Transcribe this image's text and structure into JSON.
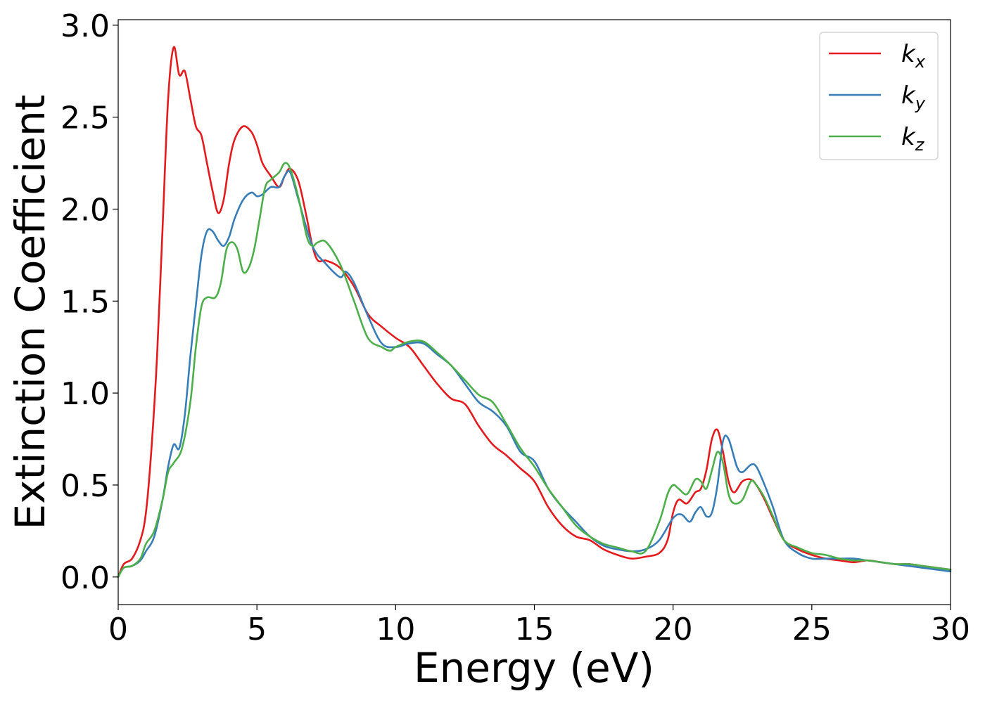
{
  "chart_data": {
    "type": "line",
    "xlabel": "Energy (eV)",
    "ylabel": "Extinction Coefficient",
    "xlim": [
      0,
      30
    ],
    "ylim": [
      -0.15,
      3.03
    ],
    "xticks": [
      "0",
      "5",
      "10",
      "15",
      "20",
      "25",
      "30"
    ],
    "yticks": [
      "0.0",
      "0.5",
      "1.0",
      "1.5",
      "2.0",
      "2.5",
      "3.0"
    ],
    "grid": false,
    "legend_position": "top-right",
    "series": [
      {
        "name": "k_x",
        "label_main": "k",
        "label_sub": "x",
        "color": "#e41a1c",
        "x": [
          0,
          0.2,
          0.5,
          0.8,
          1.0,
          1.2,
          1.4,
          1.6,
          1.8,
          2.0,
          2.2,
          2.4,
          2.6,
          2.8,
          3.0,
          3.2,
          3.4,
          3.6,
          3.8,
          4.0,
          4.2,
          4.5,
          4.8,
          5.0,
          5.2,
          5.5,
          5.8,
          6.0,
          6.2,
          6.5,
          6.8,
          7.0,
          7.2,
          7.5,
          8.0,
          8.5,
          9.0,
          9.5,
          10.0,
          10.5,
          11.0,
          11.5,
          12.0,
          12.5,
          13.0,
          13.5,
          14.0,
          14.5,
          15.0,
          15.5,
          16.0,
          16.5,
          17.0,
          17.5,
          18.0,
          18.5,
          19.0,
          19.5,
          19.8,
          20.0,
          20.2,
          20.5,
          20.8,
          21.0,
          21.2,
          21.4,
          21.6,
          21.8,
          22.0,
          22.2,
          22.5,
          22.8,
          23.0,
          23.3,
          23.6,
          24.0,
          24.5,
          25.0,
          25.5,
          26.0,
          26.5,
          27.0,
          27.5,
          28.0,
          28.5,
          29.0,
          29.5,
          30.0
        ],
        "y": [
          0.0,
          0.07,
          0.1,
          0.2,
          0.35,
          0.7,
          1.2,
          1.9,
          2.6,
          2.88,
          2.73,
          2.75,
          2.6,
          2.45,
          2.4,
          2.25,
          2.1,
          1.98,
          2.05,
          2.25,
          2.38,
          2.45,
          2.42,
          2.35,
          2.25,
          2.18,
          2.12,
          2.18,
          2.22,
          2.15,
          1.95,
          1.8,
          1.72,
          1.72,
          1.68,
          1.58,
          1.43,
          1.36,
          1.3,
          1.25,
          1.15,
          1.05,
          0.97,
          0.94,
          0.82,
          0.72,
          0.66,
          0.59,
          0.52,
          0.38,
          0.28,
          0.22,
          0.2,
          0.15,
          0.12,
          0.1,
          0.11,
          0.13,
          0.2,
          0.35,
          0.42,
          0.4,
          0.46,
          0.48,
          0.58,
          0.75,
          0.8,
          0.68,
          0.52,
          0.46,
          0.52,
          0.53,
          0.5,
          0.42,
          0.32,
          0.2,
          0.15,
          0.12,
          0.1,
          0.09,
          0.08,
          0.09,
          0.08,
          0.07,
          0.07,
          0.06,
          0.05,
          0.04
        ]
      },
      {
        "name": "k_y",
        "label_main": "k",
        "label_sub": "y",
        "color": "#377eb8",
        "x": [
          0,
          0.2,
          0.5,
          0.8,
          1.0,
          1.3,
          1.6,
          1.8,
          2.0,
          2.2,
          2.4,
          2.6,
          2.8,
          3.0,
          3.2,
          3.4,
          3.6,
          3.8,
          4.0,
          4.2,
          4.5,
          4.8,
          5.0,
          5.2,
          5.5,
          5.8,
          6.0,
          6.2,
          6.5,
          7.0,
          7.5,
          8.0,
          8.2,
          8.5,
          9.0,
          9.5,
          10.0,
          10.5,
          11.0,
          11.5,
          12.0,
          12.5,
          13.0,
          13.5,
          14.0,
          14.5,
          15.0,
          15.5,
          16.0,
          16.5,
          17.0,
          17.5,
          18.0,
          18.5,
          19.0,
          19.5,
          20.0,
          20.3,
          20.6,
          20.8,
          21.0,
          21.2,
          21.4,
          21.6,
          21.8,
          22.0,
          22.3,
          22.5,
          22.8,
          23.0,
          23.3,
          23.6,
          24.0,
          24.5,
          25.0,
          25.5,
          26.0,
          26.5,
          27.0,
          27.5,
          28.0,
          28.5,
          29.0,
          29.5,
          30.0
        ],
        "y": [
          0.0,
          0.05,
          0.06,
          0.09,
          0.14,
          0.22,
          0.42,
          0.6,
          0.72,
          0.7,
          0.88,
          1.2,
          1.48,
          1.75,
          1.88,
          1.88,
          1.83,
          1.8,
          1.85,
          1.95,
          2.05,
          2.09,
          2.07,
          2.08,
          2.12,
          2.12,
          2.18,
          2.2,
          2.05,
          1.8,
          1.7,
          1.63,
          1.66,
          1.6,
          1.42,
          1.27,
          1.25,
          1.27,
          1.27,
          1.21,
          1.15,
          1.05,
          0.95,
          0.9,
          0.82,
          0.68,
          0.63,
          0.48,
          0.38,
          0.3,
          0.22,
          0.17,
          0.15,
          0.14,
          0.15,
          0.2,
          0.32,
          0.34,
          0.3,
          0.35,
          0.38,
          0.33,
          0.35,
          0.5,
          0.74,
          0.75,
          0.6,
          0.57,
          0.61,
          0.6,
          0.5,
          0.38,
          0.2,
          0.13,
          0.1,
          0.1,
          0.1,
          0.1,
          0.09,
          0.08,
          0.07,
          0.06,
          0.05,
          0.04,
          0.03
        ]
      },
      {
        "name": "k_z",
        "label_main": "k",
        "label_sub": "z",
        "color": "#4daf4a",
        "x": [
          0,
          0.2,
          0.5,
          0.8,
          1.0,
          1.3,
          1.6,
          1.8,
          2.0,
          2.3,
          2.6,
          2.8,
          3.0,
          3.2,
          3.5,
          3.7,
          3.9,
          4.1,
          4.3,
          4.5,
          4.7,
          4.9,
          5.1,
          5.3,
          5.5,
          5.8,
          6.0,
          6.2,
          6.5,
          6.8,
          7.0,
          7.2,
          7.5,
          8.0,
          8.5,
          9.0,
          9.5,
          9.8,
          10.0,
          10.5,
          11.0,
          11.5,
          12.0,
          12.5,
          13.0,
          13.5,
          14.0,
          14.5,
          15.0,
          15.5,
          16.0,
          16.5,
          17.0,
          17.5,
          18.0,
          18.5,
          19.0,
          19.5,
          19.8,
          20.0,
          20.2,
          20.5,
          20.8,
          21.0,
          21.2,
          21.4,
          21.6,
          21.8,
          22.0,
          22.2,
          22.5,
          22.8,
          23.0,
          23.3,
          23.6,
          24.0,
          24.5,
          25.0,
          25.5,
          26.0,
          26.5,
          27.0,
          27.5,
          28.0,
          28.5,
          29.0,
          29.5,
          30.0
        ],
        "y": [
          0.0,
          0.05,
          0.06,
          0.1,
          0.18,
          0.25,
          0.42,
          0.57,
          0.62,
          0.7,
          0.95,
          1.25,
          1.47,
          1.52,
          1.52,
          1.6,
          1.78,
          1.82,
          1.78,
          1.66,
          1.68,
          1.78,
          1.95,
          2.12,
          2.16,
          2.2,
          2.25,
          2.22,
          2.06,
          1.85,
          1.8,
          1.82,
          1.82,
          1.7,
          1.5,
          1.3,
          1.25,
          1.23,
          1.25,
          1.28,
          1.28,
          1.22,
          1.15,
          1.07,
          0.99,
          0.95,
          0.83,
          0.7,
          0.6,
          0.48,
          0.38,
          0.28,
          0.22,
          0.18,
          0.16,
          0.14,
          0.14,
          0.3,
          0.45,
          0.5,
          0.48,
          0.45,
          0.53,
          0.52,
          0.48,
          0.58,
          0.68,
          0.62,
          0.45,
          0.4,
          0.42,
          0.52,
          0.5,
          0.43,
          0.33,
          0.2,
          0.16,
          0.13,
          0.12,
          0.1,
          0.09,
          0.09,
          0.08,
          0.07,
          0.07,
          0.06,
          0.05,
          0.04
        ]
      }
    ]
  }
}
